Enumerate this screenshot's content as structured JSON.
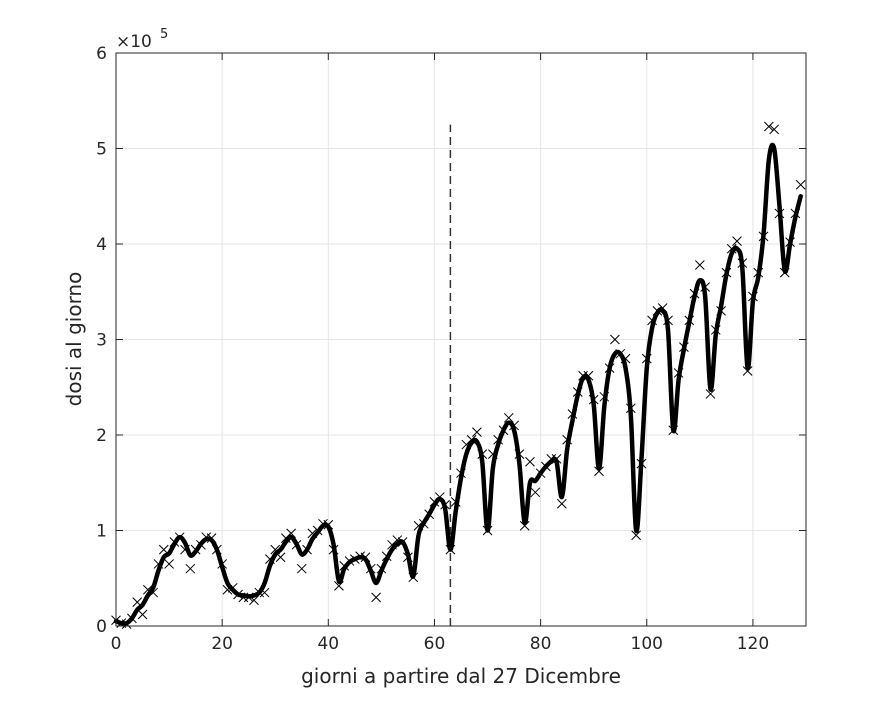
{
  "chart_data": {
    "type": "line",
    "xlabel": "giorni a partire dal 27 Dicembre",
    "ylabel": "dosi al giorno",
    "y_multiplier_base": "×10",
    "y_multiplier_exp": "5",
    "xlim": [
      0,
      130
    ],
    "ylim": [
      0,
      600000
    ],
    "x_ticks": [
      0,
      20,
      40,
      60,
      80,
      100,
      120
    ],
    "x_tick_labels": [
      "0",
      "20",
      "40",
      "60",
      "80",
      "100",
      "120"
    ],
    "y_ticks": [
      0,
      100000,
      200000,
      300000,
      400000,
      500000,
      600000
    ],
    "y_tick_labels": [
      "0",
      "1",
      "2",
      "3",
      "4",
      "5",
      "6"
    ],
    "grid": true,
    "vertical_marker_x": 63,
    "colors": {
      "series": "#000000",
      "grid": "#e6e6e6",
      "axis": "#262626",
      "marker_line": "#333333"
    },
    "series": [
      {
        "type": "scatter",
        "marker": "x",
        "x": [
          0,
          1,
          2,
          3,
          4,
          5,
          6,
          7,
          8,
          9,
          10,
          11,
          12,
          13,
          14,
          15,
          16,
          17,
          18,
          19,
          20,
          21,
          22,
          23,
          24,
          25,
          26,
          27,
          28,
          29,
          30,
          31,
          32,
          33,
          34,
          35,
          36,
          37,
          38,
          39,
          40,
          41,
          42,
          43,
          44,
          45,
          46,
          47,
          48,
          49,
          50,
          51,
          52,
          53,
          54,
          55,
          56,
          57,
          58,
          59,
          60,
          61,
          62,
          63,
          64,
          65,
          66,
          67,
          68,
          69,
          70,
          71,
          72,
          73,
          74,
          75,
          76,
          77,
          78,
          79,
          80,
          81,
          82,
          83,
          84,
          85,
          86,
          87,
          88,
          89,
          90,
          91,
          92,
          93,
          94,
          95,
          96,
          97,
          98,
          99,
          100,
          101,
          102,
          103,
          104,
          105,
          106,
          107,
          108,
          109,
          110,
          111,
          112,
          113,
          114,
          115,
          116,
          117,
          118,
          119,
          120,
          121,
          122,
          123,
          124,
          125,
          126,
          127,
          128,
          129
        ],
        "y": [
          6000,
          3000,
          2000,
          8000,
          25000,
          12000,
          38000,
          35000,
          65000,
          80000,
          65000,
          88000,
          93000,
          80000,
          60000,
          80000,
          85000,
          93000,
          92000,
          80000,
          65000,
          38000,
          40000,
          33000,
          30000,
          30000,
          27000,
          35000,
          35000,
          70000,
          80000,
          72000,
          92000,
          97000,
          85000,
          60000,
          80000,
          97000,
          100000,
          107000,
          106000,
          80000,
          42000,
          63000,
          68000,
          70000,
          73000,
          72000,
          60000,
          30000,
          60000,
          73000,
          85000,
          90000,
          88000,
          72000,
          51000,
          105000,
          107000,
          117000,
          130000,
          135000,
          127000,
          80000,
          130000,
          160000,
          190000,
          195000,
          203000,
          180000,
          100000,
          180000,
          195000,
          205000,
          218000,
          210000,
          180000,
          105000,
          172000,
          140000,
          160000,
          167000,
          175000,
          175000,
          128000,
          195000,
          222000,
          245000,
          262000,
          262000,
          237000,
          162000,
          240000,
          270000,
          300000,
          285000,
          280000,
          228000,
          95000,
          170000,
          280000,
          320000,
          330000,
          333000,
          320000,
          205000,
          265000,
          292000,
          320000,
          348000,
          378000,
          355000,
          243000,
          310000,
          330000,
          370000,
          395000,
          403000,
          380000,
          267000,
          345000,
          370000,
          408000,
          523000,
          520000,
          432000,
          370000,
          402000,
          432000,
          462000
        ]
      },
      {
        "type": "line",
        "style": "smoothed",
        "x": [
          0,
          1,
          2,
          3,
          4,
          5,
          6,
          7,
          8,
          9,
          10,
          11,
          12,
          13,
          14,
          15,
          16,
          17,
          18,
          19,
          20,
          21,
          22,
          23,
          24,
          25,
          26,
          27,
          28,
          29,
          30,
          31,
          32,
          33,
          34,
          35,
          36,
          37,
          38,
          39,
          40,
          41,
          42,
          43,
          44,
          45,
          46,
          47,
          48,
          49,
          50,
          51,
          52,
          53,
          54,
          55,
          56,
          57,
          58,
          59,
          60,
          61,
          62,
          63,
          64,
          65,
          66,
          67,
          68,
          69,
          70,
          71,
          72,
          73,
          74,
          75,
          76,
          77,
          78,
          79,
          80,
          81,
          82,
          83,
          84,
          85,
          86,
          87,
          88,
          89,
          90,
          91,
          92,
          93,
          94,
          95,
          96,
          97,
          98,
          99,
          100,
          101,
          102,
          103,
          104,
          105,
          106,
          107,
          108,
          109,
          110,
          111,
          112,
          113,
          114,
          115,
          116,
          117,
          118,
          119,
          120,
          121,
          122,
          123,
          124,
          125,
          126,
          127,
          128,
          129
        ],
        "y": [
          5000,
          3000,
          3000,
          8000,
          17000,
          22000,
          32000,
          40000,
          58000,
          72000,
          76000,
          86000,
          93000,
          87000,
          74000,
          78000,
          86000,
          91000,
          90000,
          80000,
          62000,
          45000,
          38000,
          33000,
          32000,
          31000,
          32000,
          35000,
          45000,
          63000,
          75000,
          80000,
          88000,
          93000,
          86000,
          75000,
          80000,
          91000,
          98000,
          105000,
          104000,
          85000,
          47000,
          60000,
          67000,
          70000,
          72000,
          70000,
          58000,
          45000,
          58000,
          70000,
          80000,
          86000,
          88000,
          75000,
          52000,
          95000,
          108000,
          117000,
          127000,
          133000,
          123000,
          80000,
          120000,
          155000,
          180000,
          192000,
          193000,
          172000,
          100000,
          165000,
          190000,
          205000,
          213000,
          205000,
          170000,
          108000,
          150000,
          152000,
          160000,
          167000,
          172000,
          172000,
          135000,
          185000,
          215000,
          242000,
          260000,
          258000,
          232000,
          165000,
          230000,
          270000,
          285000,
          285000,
          270000,
          220000,
          100000,
          175000,
          270000,
          312000,
          328000,
          330000,
          310000,
          205000,
          258000,
          290000,
          318000,
          345000,
          362000,
          345000,
          248000,
          305000,
          335000,
          368000,
          390000,
          395000,
          375000,
          270000,
          340000,
          365000,
          410000,
          488000,
          500000,
          440000,
          372000,
          400000,
          428000,
          450000
        ]
      }
    ]
  }
}
